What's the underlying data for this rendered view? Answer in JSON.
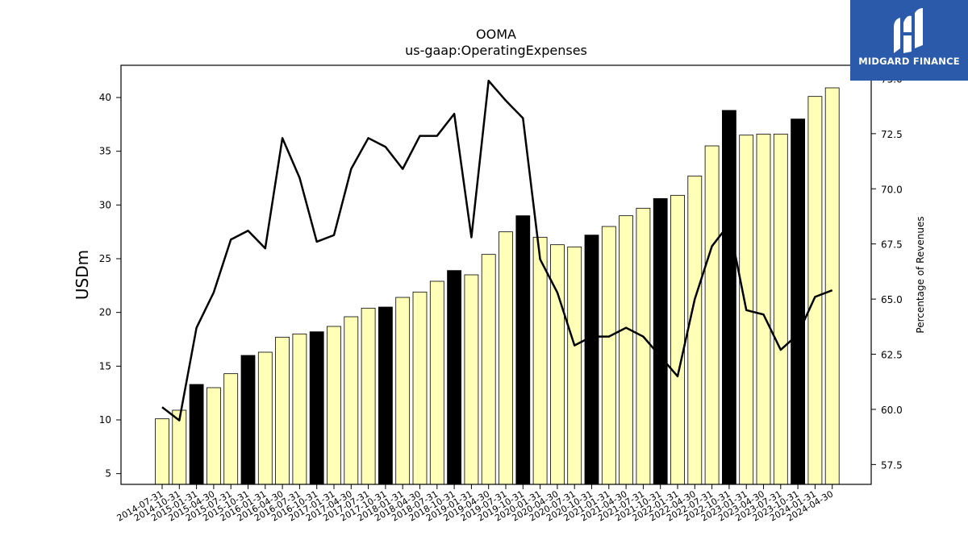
{
  "logo": {
    "text": "MIDGARD FINANCE",
    "mark": "midgard-logo-mark",
    "background": "#2b5aab"
  },
  "chart_data": {
    "type": "bar",
    "title": "OOMA",
    "subtitle": "us-gaap:OperatingExpenses",
    "ylabel": "USDm",
    "y2label": "Percentage of Revenues",
    "ylim": [
      4,
      43
    ],
    "y2lim": [
      56.6,
      75.6
    ],
    "yticks": [
      5,
      10,
      15,
      20,
      25,
      30,
      35,
      40
    ],
    "y2ticks": [
      57.5,
      60.0,
      62.5,
      65.0,
      67.5,
      70.0,
      72.5,
      75.0
    ],
    "y2tick_labels": [
      "57.5",
      "60.0",
      "62.5",
      "65.0",
      "67.5",
      "70.0",
      "72.5",
      "75.0"
    ],
    "colors": {
      "quarter": "#ffffb8",
      "fiscal_year_end": "#000000",
      "line": "#000000"
    },
    "categories": [
      "2014-07-31",
      "2014-10-31",
      "2015-01-31",
      "2015-04-30",
      "2015-07-31",
      "2015-10-31",
      "2016-01-31",
      "2016-04-30",
      "2016-07-31",
      "2016-10-31",
      "2017-01-31",
      "2017-04-30",
      "2017-07-31",
      "2017-10-31",
      "2018-01-31",
      "2018-04-30",
      "2018-07-31",
      "2018-10-31",
      "2019-01-31",
      "2019-04-30",
      "2019-07-31",
      "2019-10-31",
      "2020-01-31",
      "2020-04-30",
      "2020-07-31",
      "2020-10-31",
      "2021-01-31",
      "2021-04-30",
      "2021-07-31",
      "2021-10-31",
      "2022-01-31",
      "2022-04-30",
      "2022-07-31",
      "2022-10-31",
      "2023-01-31",
      "2023-04-30",
      "2023-07-31",
      "2023-10-31",
      "2024-01-31",
      "2024-04-30"
    ],
    "series": [
      {
        "type": "bar",
        "values": [
          10.1,
          10.9,
          13.3,
          13.0,
          14.3,
          16.0,
          16.3,
          17.7,
          18.0,
          18.2,
          18.7,
          19.6,
          20.4,
          20.5,
          21.4,
          21.9,
          22.9,
          23.9,
          23.5,
          25.4,
          27.5,
          29.0,
          27.0,
          26.3,
          26.1,
          27.2,
          28.0,
          29.0,
          29.7,
          30.6,
          30.9,
          32.7,
          35.5,
          38.8,
          36.5,
          36.6,
          36.6,
          38.0,
          40.1,
          40.9
        ],
        "highlight": [
          false,
          false,
          true,
          false,
          false,
          true,
          false,
          false,
          false,
          true,
          false,
          false,
          false,
          true,
          false,
          false,
          false,
          true,
          false,
          false,
          false,
          true,
          false,
          false,
          false,
          true,
          false,
          false,
          false,
          true,
          false,
          false,
          false,
          true,
          false,
          false,
          false,
          true,
          false,
          false
        ]
      },
      {
        "type": "line",
        "axis": "right",
        "values": [
          60.1,
          59.5,
          63.7,
          65.3,
          67.7,
          68.1,
          67.3,
          72.3,
          70.5,
          67.6,
          67.9,
          70.9,
          72.3,
          71.9,
          70.9,
          72.4,
          72.4,
          73.4,
          67.8,
          74.9,
          74.0,
          73.2,
          66.8,
          65.3,
          62.9,
          63.3,
          63.3,
          63.7,
          63.3,
          62.4,
          61.5,
          65.0,
          67.4,
          68.4,
          64.5,
          64.3,
          62.7,
          63.4,
          65.1,
          65.4
        ]
      }
    ],
    "grid": false,
    "legend": "none"
  }
}
